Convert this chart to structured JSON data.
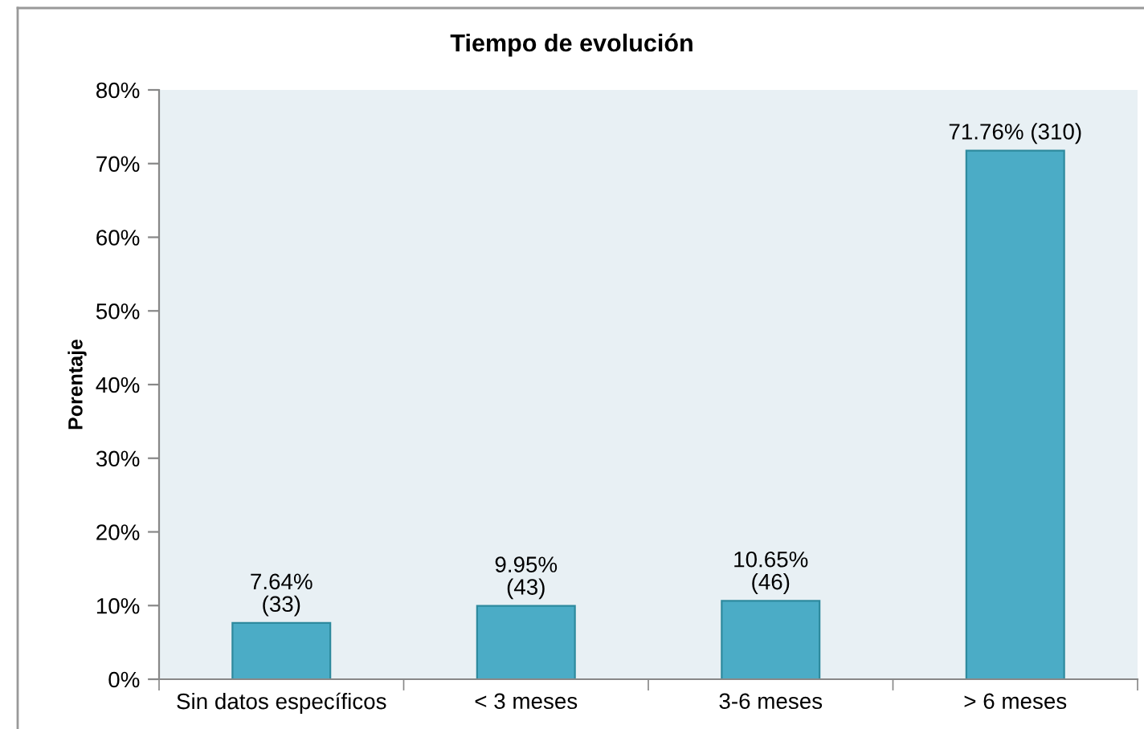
{
  "chart_data": {
    "type": "bar",
    "title": "Tiempo de evolución",
    "ylabel": "Porentaje",
    "categories": [
      "Sin datos específicos",
      "< 3 meses",
      "3-6 meses",
      "> 6 meses"
    ],
    "values": [
      7.64,
      9.95,
      10.65,
      71.76
    ],
    "value_labels": [
      "7.64%\n(33)",
      "9.95%\n(43)",
      "10.65%\n(46)",
      "71.76% (310)"
    ],
    "color": "#4bacc6",
    "ylim": [
      0,
      80
    ],
    "yticks": [
      {
        "value": 0,
        "label": "0%"
      },
      {
        "value": 10,
        "label": "10%"
      },
      {
        "value": 20,
        "label": "20%"
      },
      {
        "value": 30,
        "label": "30%"
      },
      {
        "value": 40,
        "label": "40%"
      },
      {
        "value": 50,
        "label": "50%"
      },
      {
        "value": 60,
        "label": "60%"
      },
      {
        "value": 70,
        "label": "70%"
      },
      {
        "value": 80,
        "label": "80%"
      }
    ],
    "grid": false,
    "legend": false
  }
}
